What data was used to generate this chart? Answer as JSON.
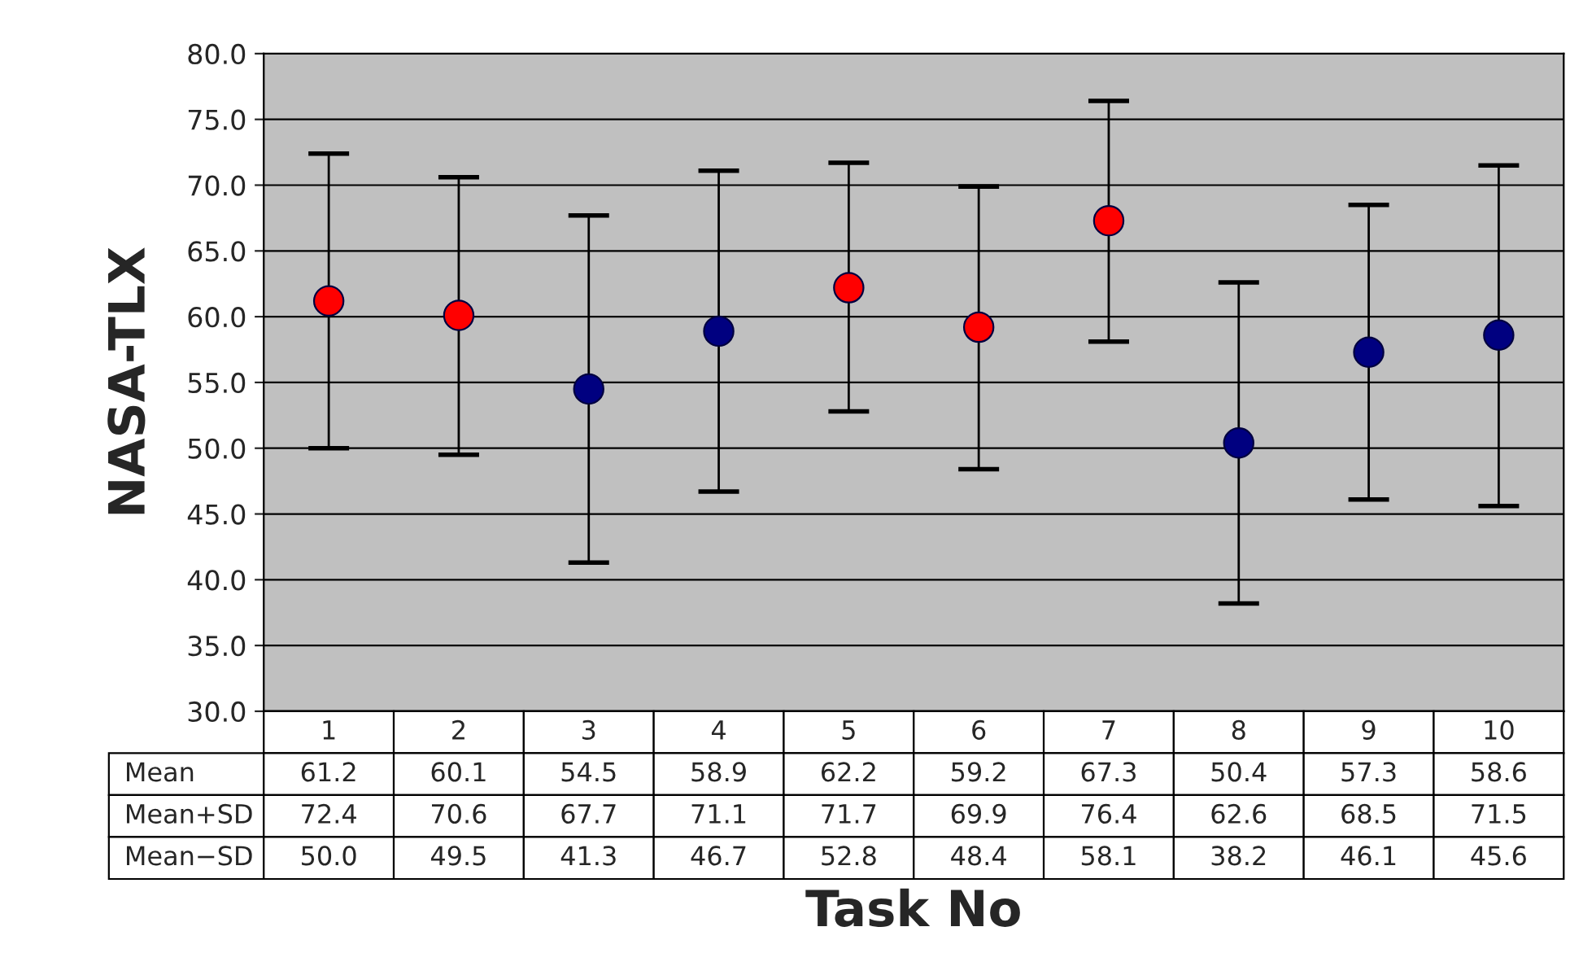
{
  "chart_data": {
    "type": "scatter",
    "xlabel": "Task No",
    "ylabel": "NASA-TLX",
    "categories": [
      "1",
      "2",
      "3",
      "4",
      "5",
      "6",
      "7",
      "8",
      "9",
      "10"
    ],
    "series": [
      {
        "name": "Mean",
        "values": [
          61.2,
          60.1,
          54.5,
          58.9,
          62.2,
          59.2,
          67.3,
          50.4,
          57.3,
          58.6
        ],
        "colors": [
          "#ff0000",
          "#ff0000",
          "#000080",
          "#000080",
          "#ff0000",
          "#ff0000",
          "#ff0000",
          "#000080",
          "#000080",
          "#000080"
        ],
        "errors": [
          [
            50.0,
            72.4
          ],
          [
            49.5,
            70.6
          ],
          [
            41.3,
            67.7
          ],
          [
            46.7,
            71.1
          ],
          [
            52.8,
            71.7
          ],
          [
            48.4,
            69.9
          ],
          [
            58.1,
            76.4
          ],
          [
            38.2,
            62.6
          ],
          [
            46.1,
            68.5
          ],
          [
            45.6,
            71.5
          ]
        ]
      }
    ],
    "annotations": [
      "Mean+SD",
      "72.4",
      "70.6",
      "67.7",
      "71.1",
      "71.7",
      "69.9",
      "76.4",
      "62.6",
      "68.5",
      "71.5",
      "Mean−SD",
      "50.0",
      "49.5",
      "41.3",
      "46.7",
      "52.8",
      "48.4",
      "58.1",
      "38.2",
      "46.1",
      "45.6"
    ],
    "data_labels": true,
    "ylim": [
      30,
      80
    ],
    "yticks": [
      {
        "value": 30,
        "label": "30.0"
      },
      {
        "value": 35,
        "label": "35.0"
      },
      {
        "value": 40,
        "label": "40.0"
      },
      {
        "value": 45,
        "label": "45.0"
      },
      {
        "value": 50,
        "label": "50.0"
      },
      {
        "value": 55,
        "label": "55.0"
      },
      {
        "value": 60,
        "label": "60.0"
      },
      {
        "value": 65,
        "label": "65.0"
      },
      {
        "value": 70,
        "label": "70.0"
      },
      {
        "value": 75,
        "label": "75.0"
      },
      {
        "value": 80,
        "label": "80.0"
      }
    ],
    "grid": "y",
    "marker": "circle",
    "legend": false
  }
}
